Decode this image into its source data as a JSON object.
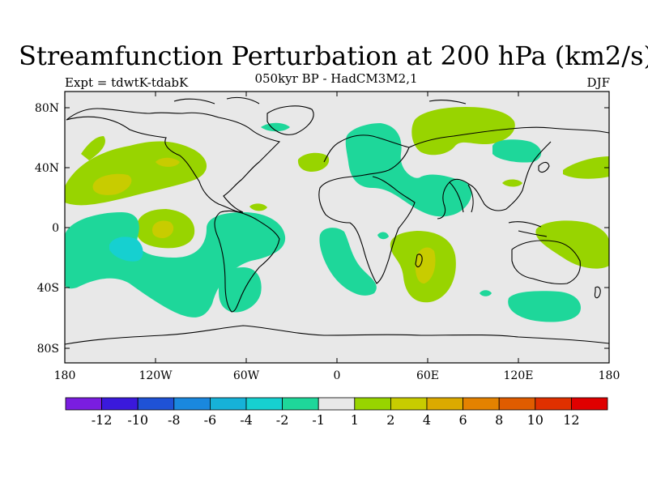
{
  "header": {
    "title": "Streamfunction Perturbation at 200 hPa (km2/s)",
    "subtitle": "050kyr BP - HadCM3M2,1",
    "experiment": "Expt = tdwtK-tdabK",
    "season": "DJF"
  },
  "map": {
    "lat_labels": [
      "80N",
      "40N",
      "0",
      "40S",
      "80S"
    ],
    "lon_labels": [
      "180",
      "120W",
      "60W",
      "0",
      "60E",
      "120E",
      "180"
    ],
    "background_color": "#e8e8e8"
  },
  "colorbar": {
    "colors": [
      "#7a1de0",
      "#3a19dc",
      "#1f52d6",
      "#1a88de",
      "#16b2d8",
      "#16d0d0",
      "#1ed79a",
      "#e8e8e8",
      "#98d400",
      "#c8cc00",
      "#dcaa00",
      "#e48200",
      "#e05c00",
      "#e03000",
      "#e00000"
    ],
    "labels": [
      "-12",
      "-10",
      "-8",
      "-6",
      "-4",
      "-2",
      "-1",
      "1",
      "2",
      "4",
      "6",
      "8",
      "10",
      "12"
    ]
  }
}
